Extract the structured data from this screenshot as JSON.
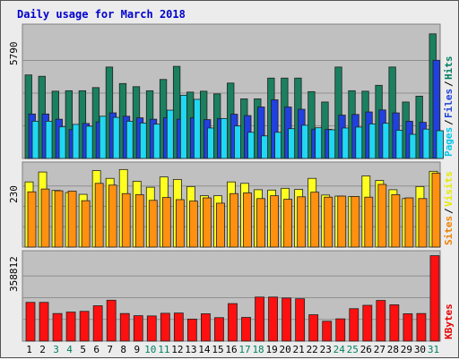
{
  "chart_data": {
    "type": "bar",
    "title": "Daily usage for March 2018",
    "categories": [
      "1",
      "2",
      "3",
      "4",
      "5",
      "6",
      "7",
      "8",
      "9",
      "10",
      "11",
      "12",
      "13",
      "14",
      "15",
      "16",
      "17",
      "18",
      "19",
      "20",
      "21",
      "22",
      "23",
      "24",
      "25",
      "26",
      "27",
      "28",
      "29",
      "30",
      "31"
    ],
    "weekend_days": [
      "3",
      "4",
      "10",
      "11",
      "17",
      "18",
      "24",
      "25",
      "31"
    ],
    "panels": [
      {
        "name": "hits-files-pages",
        "ymax_label": "5790",
        "ylim": [
          0,
          5790
        ],
        "legend": [
          {
            "text": "Pages",
            "color": "#00c8e8"
          },
          {
            "text": "Files",
            "color": "#2040d8"
          },
          {
            "text": "Hits",
            "color": "#007f5f"
          }
        ],
        "series": [
          {
            "name": "Hits",
            "color": "#1a8060",
            "values": [
              3700,
              3640,
              2980,
              3000,
              3000,
              3140,
              4050,
              3320,
              3180,
              3000,
              3500,
              4080,
              2940,
              2980,
              2860,
              3340,
              2640,
              2640,
              3560,
              3560,
              3560,
              2960,
              2500,
              4050,
              3000,
              2980,
              3240,
              4050,
              2500,
              2760,
              5520
            ]
          },
          {
            "name": "Files",
            "color": "#2040e0",
            "values": [
              1970,
              1970,
              1740,
              1280,
              1550,
              1620,
              2020,
              1870,
              1800,
              1740,
              1800,
              1740,
              1800,
              1720,
              1770,
              1960,
              1900,
              2280,
              2600,
              2280,
              2180,
              1300,
              1290,
              1920,
              1950,
              2060,
              2150,
              2020,
              1650,
              1600,
              4350
            ]
          },
          {
            "name": "Pages",
            "color": "#20d8f4",
            "values": [
              1650,
              1650,
              1400,
              1510,
              1430,
              1870,
              1820,
              1650,
              1570,
              1520,
              2140,
              2800,
              2620,
              1350,
              1770,
              1440,
              1160,
              1000,
              1160,
              1320,
              1470,
              1360,
              1270,
              1350,
              1390,
              1530,
              1560,
              1250,
              1070,
              1300,
              1230
            ]
          }
        ]
      },
      {
        "name": "visits-sites",
        "ymax_label": "230",
        "ylim": [
          0,
          230
        ],
        "legend": [
          {
            "text": "Sites",
            "color": "#f08000"
          },
          {
            "text": "Visits",
            "color": "#e8e800"
          }
        ],
        "series": [
          {
            "name": "Visits",
            "color": "#ffff20",
            "values": [
              184,
              212,
              160,
              154,
              149,
              216,
              194,
              219,
              186,
              169,
              198,
              191,
              171,
              145,
              145,
              184,
              180,
              162,
              161,
              166,
              163,
              194,
              147,
              144,
              143,
              201,
              188,
              162,
              137,
              171,
              214
            ]
          },
          {
            "name": "Sites",
            "color": "#ff9010",
            "values": [
              156,
              164,
              159,
              158,
              131,
              180,
              175,
              151,
              148,
              132,
              140,
              134,
              130,
              139,
              124,
              151,
              153,
              137,
              145,
              135,
              142,
              155,
              141,
              144,
              143,
              141,
              177,
              148,
              139,
              137,
              209
            ]
          }
        ]
      },
      {
        "name": "kbytes",
        "ymax_label": "358812",
        "ylim": [
          0,
          358812
        ],
        "legend": [
          {
            "text": "KBytes",
            "color": "#e80000"
          }
        ],
        "series": [
          {
            "name": "KBytes",
            "color": "#ff1010",
            "values": [
              160000,
              160000,
              114000,
              120000,
              123000,
              146000,
              169000,
              114000,
              105000,
              104000,
              115000,
              116000,
              91000,
              113000,
              97000,
              155000,
              98000,
              182000,
              182000,
              178000,
              175000,
              109000,
              82000,
              92000,
              134000,
              148000,
              168000,
              150000,
              113000,
              114000,
              353000
            ]
          }
        ]
      }
    ]
  }
}
